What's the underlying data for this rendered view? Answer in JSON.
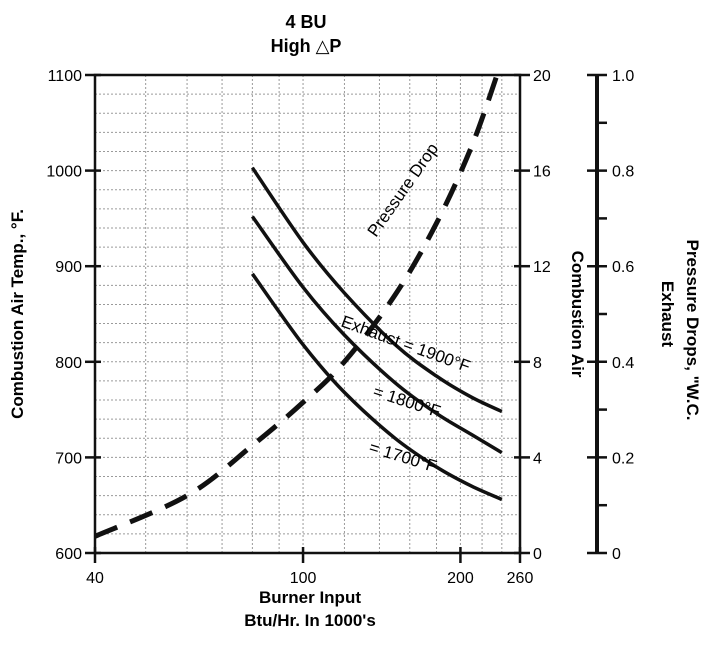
{
  "chart_data": {
    "type": "line",
    "title": "4 BU",
    "subtitle": "High △P",
    "xlabel_line1": "Burner Input",
    "xlabel_line2": "Btu/Hr. In 1000's",
    "ylabel_left": "Combustion Air Temp., °F.",
    "ylabel_mid": "Combustion Air",
    "ylabel_right_1": "Exhaust",
    "ylabel_right_2": "Pressure Drops, \"W.C.",
    "x_scale": "log",
    "xlim": [
      40,
      260
    ],
    "x_ticks": [
      "40",
      "100",
      "200",
      "260"
    ],
    "ylim_left": [
      600,
      1100
    ],
    "y_ticks_left": [
      "600",
      "700",
      "800",
      "900",
      "1000",
      "1100"
    ],
    "ylim_mid": [
      0,
      20
    ],
    "y_ticks_mid": [
      "0",
      "4",
      "8",
      "12",
      "16",
      "20"
    ],
    "ylim_right": [
      0,
      1.0
    ],
    "y_ticks_right": [
      "0",
      "0.2",
      "0.4",
      "0.6",
      "0.8",
      "1.0"
    ],
    "grid": true,
    "series": [
      {
        "name": "Exhaust = 1900°F",
        "axis": "left",
        "x": [
          80,
          100,
          120,
          150,
          180,
          210,
          240
        ],
        "y": [
          1003,
          925,
          872,
          818,
          785,
          763,
          748
        ]
      },
      {
        "name": "= 1800°F",
        "axis": "left",
        "x": [
          80,
          100,
          120,
          150,
          180,
          210,
          240
        ],
        "y": [
          952,
          878,
          828,
          778,
          746,
          724,
          705
        ]
      },
      {
        "name": "= 1700°F",
        "axis": "left",
        "x": [
          80,
          100,
          120,
          150,
          180,
          210,
          240
        ],
        "y": [
          892,
          818,
          768,
          720,
          690,
          670,
          656
        ]
      },
      {
        "name": "Pressure Drop",
        "axis": "mid",
        "style": "dashed",
        "x": [
          40,
          60,
          80,
          100,
          120,
          150,
          180,
          210,
          235
        ],
        "y": [
          0.7,
          2.4,
          4.5,
          6.3,
          8.0,
          10.8,
          13.8,
          17.0,
          20.0
        ]
      }
    ],
    "curve_labels": [
      "Exhaust = 1900°F",
      "= 1800°F",
      "= 1700°F",
      "Pressure Drop"
    ]
  }
}
